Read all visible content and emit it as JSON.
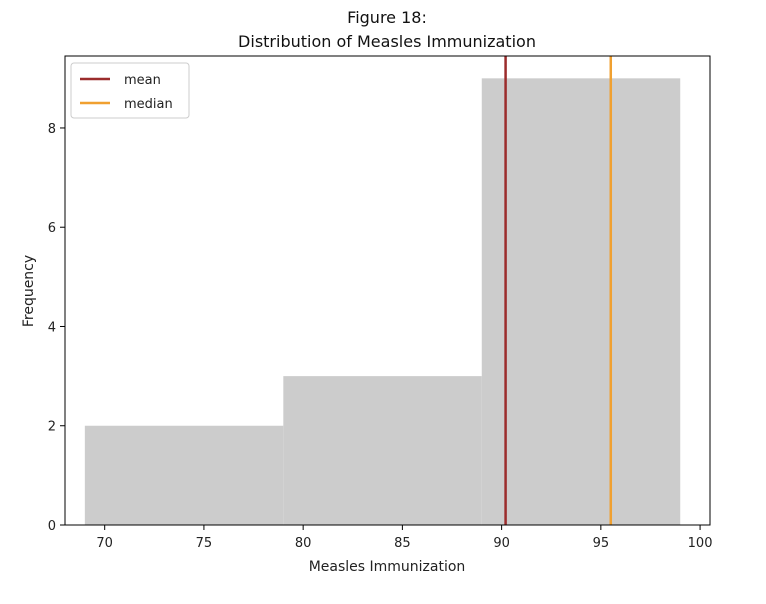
{
  "chart_data": {
    "type": "bar",
    "title_line1": "Figure 18:",
    "title_line2": "Distribution of Measles Immunization",
    "xlabel": "Measles Immunization",
    "ylabel": "Frequency",
    "xlim": [
      68,
      100.5
    ],
    "ylim": [
      0,
      9.45
    ],
    "xticks": [
      70,
      75,
      80,
      85,
      90,
      95,
      100
    ],
    "yticks": [
      0,
      2,
      4,
      6,
      8
    ],
    "bins": [
      {
        "x0": 69,
        "x1": 79,
        "count": 2
      },
      {
        "x0": 79,
        "x1": 89,
        "count": 3
      },
      {
        "x0": 89,
        "x1": 99,
        "count": 9
      }
    ],
    "bar_color": "#cccccc",
    "lines": [
      {
        "name": "mean",
        "x": 90.2,
        "color": "#9b2c2c"
      },
      {
        "name": "median",
        "x": 95.5,
        "color": "#f0a030"
      }
    ],
    "legend_position": "upper-left",
    "grid": false
  }
}
